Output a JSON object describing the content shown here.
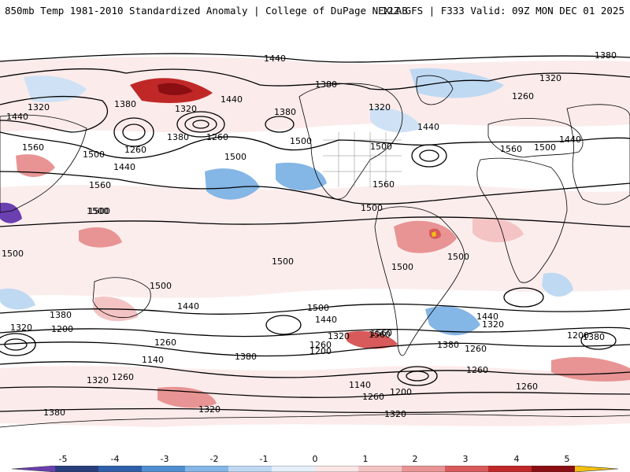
{
  "header": {
    "title": "850mb Temp 1981-2010 Standardized Anomaly | College of DuPage NEXLAB",
    "run_info": "12Z GFS | F333 Valid: 09Z MON DEC 01 2025"
  },
  "map": {
    "contour_labels": [
      "1440",
      "1380",
      "1320",
      "1440",
      "1320",
      "1380",
      "1320",
      "1500",
      "1440",
      "1380",
      "1260",
      "1380",
      "1260",
      "1320",
      "1440",
      "1380",
      "1500",
      "1440",
      "1500",
      "1560",
      "1560",
      "1560",
      "1500",
      "1500",
      "1440",
      "1260",
      "1560",
      "1500",
      "1500",
      "1500",
      "1500",
      "1500",
      "1500",
      "1500",
      "1560",
      "1440",
      "1500",
      "1380",
      "1320",
      "1200",
      "1260",
      "1140",
      "1260",
      "1320",
      "1380",
      "1500",
      "1440",
      "1320",
      "1260",
      "1200",
      "1560",
      "1380",
      "1440",
      "1320",
      "1200",
      "1140",
      "1260",
      "1200",
      "1260",
      "1320",
      "1260",
      "1380",
      "1320",
      "1260",
      "1380"
    ]
  },
  "colorbar": {
    "ticks": [
      "-5",
      "-4",
      "-3",
      "-2",
      "-1",
      "0",
      "1",
      "2",
      "3",
      "4",
      "5"
    ],
    "colors": {
      "neg": [
        "#6a3fb0",
        "#283f7c",
        "#2f5fa8",
        "#4f8fd0",
        "#84b6e6",
        "#bfd9f2",
        "#e6f0fa"
      ],
      "pos": [
        "#fbe6e6",
        "#f4c4c4",
        "#e89494",
        "#d85a5a",
        "#c02828",
        "#8a0e12",
        "#f2c010"
      ]
    }
  }
}
